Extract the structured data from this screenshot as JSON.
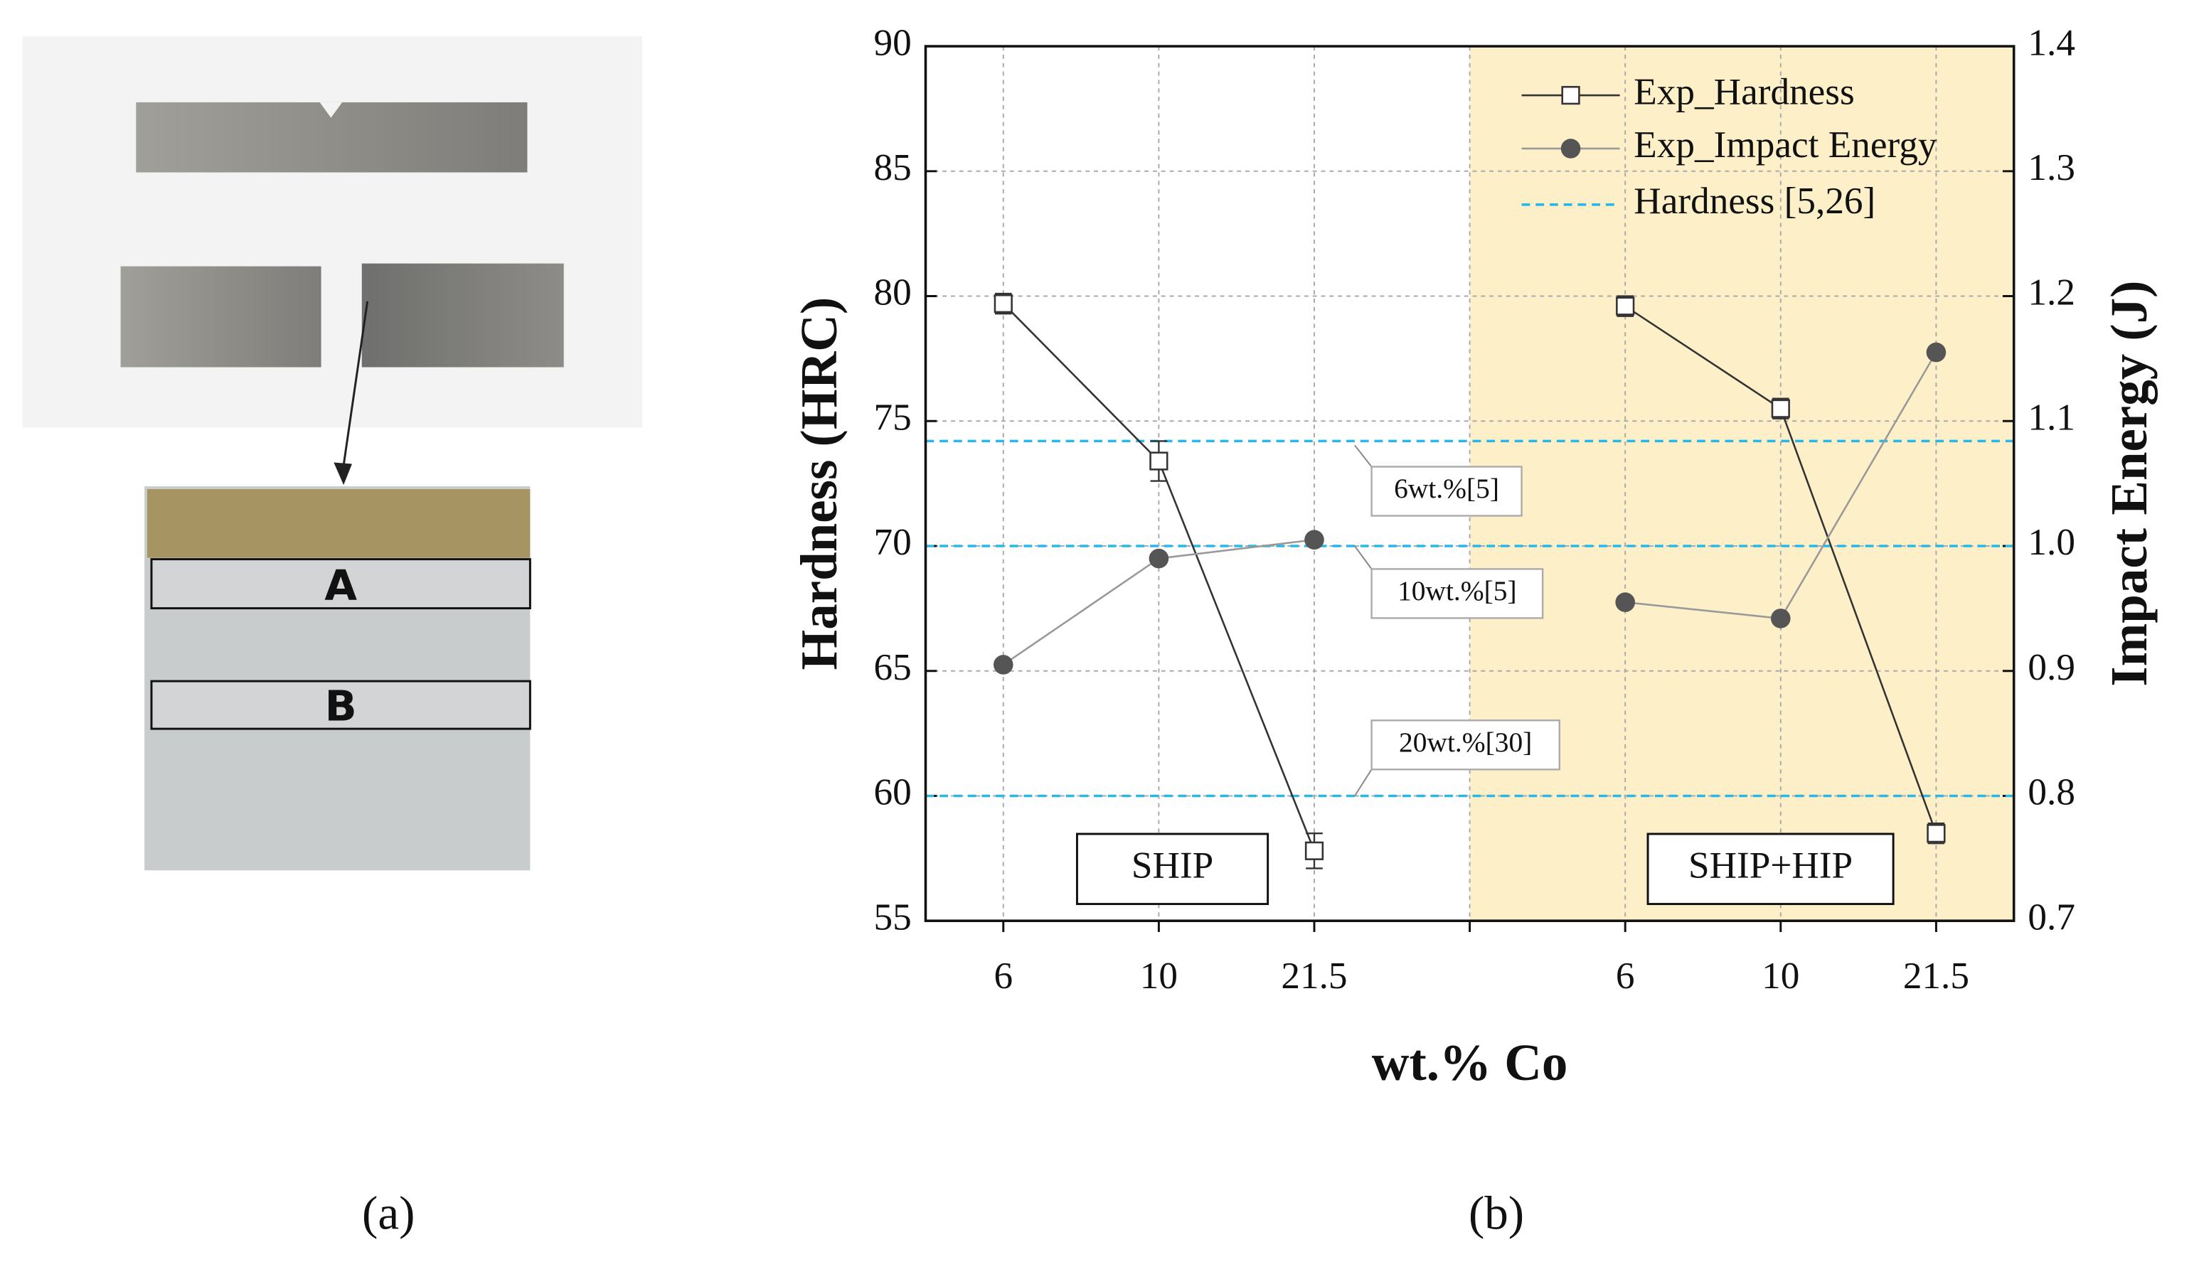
{
  "panels": {
    "a": {
      "label": "(a)",
      "regions": [
        "A",
        "B"
      ]
    },
    "b": {
      "label": "(b)"
    }
  },
  "chart_data": {
    "type": "line",
    "xlabel": "wt.% Co",
    "ylabel": "Hardness (HRC)",
    "y2label": "Impact Energy (J)",
    "categories": [
      "6",
      "10",
      "21.5",
      null,
      "6",
      "10",
      "21.5"
    ],
    "series": [
      {
        "name": "Exp_Hardness",
        "color": "#333333",
        "marker": "square",
        "values": [
          79.7,
          73.4,
          57.8,
          null,
          79.6,
          75.5,
          58.5
        ],
        "errors": [
          0.4,
          0.8,
          0.7,
          null,
          0.4,
          0.4,
          0.4
        ]
      },
      {
        "name": "Exp_Impact Energy",
        "color": "#555555",
        "marker": "circle",
        "axis": "y2",
        "values": [
          0.905,
          0.99,
          1.005,
          null,
          0.955,
          0.942,
          1.155
        ]
      }
    ],
    "reference_lines": {
      "name": "Hardness [5,26]",
      "color": "#29b6e8",
      "values": [
        74.2,
        70,
        60
      ],
      "labels": [
        "6wt.%[5]",
        "10wt.%[5]",
        "20wt.%[30]"
      ]
    },
    "annotations": [
      "SHIP",
      "SHIP+HIP"
    ],
    "ylim": [
      55,
      90
    ],
    "yticks": [
      55,
      60,
      65,
      70,
      75,
      80,
      85,
      90
    ],
    "y2lim": [
      0.7,
      1.4
    ],
    "y2ticks": [
      0.7,
      0.8,
      0.9,
      {
        "value": 1,
        "label": "1.0"
      },
      1.1,
      1.2,
      1.3,
      1.4
    ],
    "grid": true,
    "legend": "upper right"
  }
}
